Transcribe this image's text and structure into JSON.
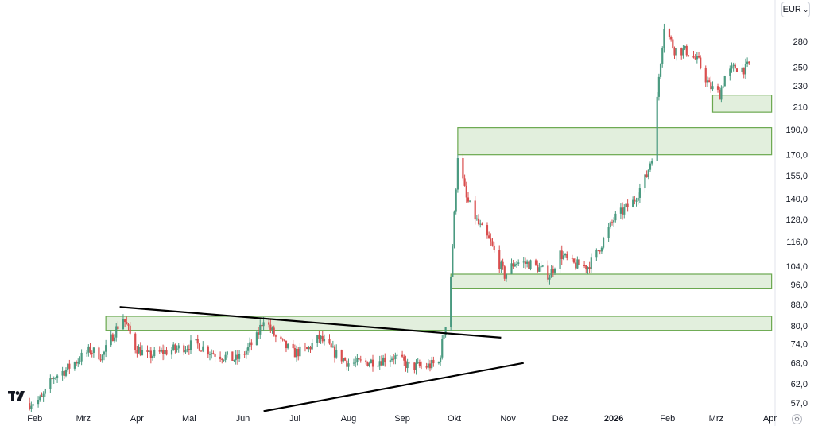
{
  "header": {
    "currency_label": "EUR",
    "currency_chevron": "⌄"
  },
  "footer": {
    "settings_icon": "gear-icon",
    "logo": "tradingview-logo"
  },
  "colors": {
    "up": "#4a9a80",
    "down": "#d94e4e",
    "zone_fill": "#e2efdd",
    "zone_stroke": "#6aa84f",
    "trendline": "#000000",
    "axis_border": "#e0e3eb"
  },
  "chart_data": {
    "type": "candlestick",
    "title": "",
    "xlabel": "",
    "ylabel": "",
    "y_scale": "log",
    "ylim": [
      54.5,
      330
    ],
    "xlim": [
      "2025-01-28",
      "2026-04-04"
    ],
    "grid": false,
    "y_ticks": [
      {
        "value": 280,
        "label": "280"
      },
      {
        "value": 250,
        "label": "250"
      },
      {
        "value": 230,
        "label": "230"
      },
      {
        "value": 210,
        "label": "210"
      },
      {
        "value": 190,
        "label": "190,0"
      },
      {
        "value": 170,
        "label": "170,0"
      },
      {
        "value": 155,
        "label": "155,0"
      },
      {
        "value": 140,
        "label": "140,0"
      },
      {
        "value": 128,
        "label": "128,0"
      },
      {
        "value": 116,
        "label": "116,0"
      },
      {
        "value": 104,
        "label": "104,0"
      },
      {
        "value": 96,
        "label": "96,0"
      },
      {
        "value": 88,
        "label": "88,0"
      },
      {
        "value": 80,
        "label": "80,0"
      },
      {
        "value": 74,
        "label": "74,0"
      },
      {
        "value": 68,
        "label": "68,0"
      },
      {
        "value": 62,
        "label": "62,0"
      },
      {
        "value": 57,
        "label": "57,0"
      }
    ],
    "x_ticks": [
      {
        "date": "2025-02-01",
        "label": "Feb",
        "bold": false
      },
      {
        "date": "2025-03-01",
        "label": "Mrz",
        "bold": false
      },
      {
        "date": "2025-04-01",
        "label": "Apr",
        "bold": false
      },
      {
        "date": "2025-05-01",
        "label": "Mai",
        "bold": false
      },
      {
        "date": "2025-06-01",
        "label": "Jun",
        "bold": false
      },
      {
        "date": "2025-07-01",
        "label": "Jul",
        "bold": false
      },
      {
        "date": "2025-08-01",
        "label": "Aug",
        "bold": false
      },
      {
        "date": "2025-09-01",
        "label": "Sep",
        "bold": false
      },
      {
        "date": "2025-10-01",
        "label": "Okt",
        "bold": false
      },
      {
        "date": "2025-11-01",
        "label": "Nov",
        "bold": false
      },
      {
        "date": "2025-12-01",
        "label": "Dez",
        "bold": false
      },
      {
        "date": "2026-01-01",
        "label": "2026",
        "bold": true
      },
      {
        "date": "2026-02-01",
        "label": "Feb",
        "bold": false
      },
      {
        "date": "2026-03-01",
        "label": "Mrz",
        "bold": false
      },
      {
        "date": "2026-04-01",
        "label": "Apr",
        "bold": false
      }
    ],
    "price_path": [
      [
        "2025-01-29",
        57
      ],
      [
        "2025-02-05",
        58
      ],
      [
        "2025-02-12",
        64
      ],
      [
        "2025-02-19",
        66
      ],
      [
        "2025-02-26",
        69
      ],
      [
        "2025-03-05",
        72
      ],
      [
        "2025-03-12",
        70
      ],
      [
        "2025-03-19",
        78
      ],
      [
        "2025-03-24",
        83
      ],
      [
        "2025-03-31",
        73
      ],
      [
        "2025-04-07",
        70
      ],
      [
        "2025-04-14",
        71
      ],
      [
        "2025-04-21",
        72
      ],
      [
        "2025-04-28",
        73
      ],
      [
        "2025-05-05",
        74
      ],
      [
        "2025-05-15",
        71
      ],
      [
        "2025-05-28",
        69
      ],
      [
        "2025-06-02",
        71
      ],
      [
        "2025-06-09",
        76
      ],
      [
        "2025-06-13",
        83
      ],
      [
        "2025-06-20",
        76
      ],
      [
        "2025-06-30",
        71
      ],
      [
        "2025-07-08",
        72
      ],
      [
        "2025-07-15",
        76
      ],
      [
        "2025-07-22",
        72
      ],
      [
        "2025-08-01",
        68
      ],
      [
        "2025-08-08",
        68
      ],
      [
        "2025-08-20",
        69
      ],
      [
        "2025-08-27",
        70
      ],
      [
        "2025-09-05",
        67
      ],
      [
        "2025-09-15",
        67
      ],
      [
        "2025-09-22",
        68
      ],
      [
        "2025-09-26",
        81
      ],
      [
        "2025-09-29",
        100
      ],
      [
        "2025-10-01",
        130
      ],
      [
        "2025-10-03",
        170
      ],
      [
        "2025-10-08",
        140
      ],
      [
        "2025-10-15",
        125
      ],
      [
        "2025-10-22",
        115
      ],
      [
        "2025-10-30",
        100
      ],
      [
        "2025-11-05",
        106
      ],
      [
        "2025-11-15",
        105
      ],
      [
        "2025-11-25",
        100
      ],
      [
        "2025-12-01",
        110
      ],
      [
        "2025-12-08",
        105
      ],
      [
        "2025-12-17",
        104
      ],
      [
        "2025-12-22",
        110
      ],
      [
        "2026-01-01",
        128
      ],
      [
        "2026-01-12",
        138
      ],
      [
        "2026-01-20",
        155
      ],
      [
        "2026-01-24",
        175
      ],
      [
        "2026-01-27",
        240
      ],
      [
        "2026-01-30",
        300
      ],
      [
        "2026-02-05",
        270
      ],
      [
        "2026-02-12",
        268
      ],
      [
        "2026-02-19",
        255
      ],
      [
        "2026-02-25",
        230
      ],
      [
        "2026-03-03",
        222
      ],
      [
        "2026-03-06",
        240
      ],
      [
        "2026-03-12",
        250
      ],
      [
        "2026-03-18",
        248
      ],
      [
        "2026-03-22",
        258
      ]
    ],
    "price_zones": [
      {
        "name": "zone-80",
        "from": "2025-03-14",
        "to": "2026-04-02",
        "low": 78.5,
        "high": 83.5
      },
      {
        "name": "zone-96",
        "from": "2025-09-29",
        "to": "2026-04-02",
        "low": 94.5,
        "high": 100.5
      },
      {
        "name": "zone-170",
        "from": "2025-10-03",
        "to": "2026-04-02",
        "low": 170,
        "high": 191.5
      },
      {
        "name": "zone-210",
        "from": "2026-02-27",
        "to": "2026-04-02",
        "low": 205,
        "high": 221
      }
    ],
    "trendlines": [
      {
        "name": "upper-trendline",
        "from": [
          "2025-03-22",
          87
        ],
        "to": [
          "2025-10-28",
          76
        ]
      },
      {
        "name": "lower-trendline",
        "from": [
          "2025-06-13",
          55
        ],
        "to": [
          "2025-11-10",
          68
        ]
      }
    ]
  }
}
